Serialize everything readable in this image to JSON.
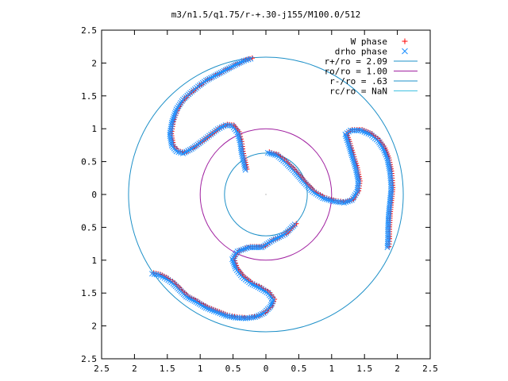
{
  "chart_data": {
    "type": "scatter",
    "title": "m3/n1.5/q1.75/r-+.30-j155/M100.0/512",
    "xlim": [
      -2.5,
      2.5
    ],
    "ylim": [
      -2.5,
      2.5
    ],
    "x_ticks": [
      -2.5,
      -2,
      -1.5,
      -1,
      -0.5,
      0,
      0.5,
      1,
      1.5,
      2,
      2.5
    ],
    "y_ticks": [
      -2.5,
      -2,
      -1.5,
      -1,
      -0.5,
      0,
      0.5,
      1,
      1.5,
      2,
      2.5
    ],
    "x_tick_labels": [
      "2.5",
      "2",
      "1.5",
      "1",
      "0.5",
      "0",
      "0.5",
      "1",
      "1.5",
      "2",
      "2.5"
    ],
    "y_tick_labels": [
      "2.5",
      "2",
      "1.5",
      "1",
      "0.5",
      "0",
      "0.5",
      "1",
      "1.5",
      "2",
      "2.5"
    ],
    "grid": false,
    "legend_position": "top-right",
    "series": [
      {
        "name": "W phase",
        "marker": "plus",
        "color": "#ff0000",
        "arms": [
          [
            [
              -0.22,
              2.07
            ],
            [
              -0.32,
              2.04
            ],
            [
              -0.45,
              1.98
            ],
            [
              -0.6,
              1.9
            ],
            [
              -0.75,
              1.82
            ],
            [
              -0.9,
              1.74
            ],
            [
              -1.02,
              1.65
            ],
            [
              -1.14,
              1.55
            ],
            [
              -1.25,
              1.45
            ],
            [
              -1.35,
              1.3
            ],
            [
              -1.42,
              1.1
            ],
            [
              -1.45,
              0.92
            ],
            [
              -1.42,
              0.75
            ],
            [
              -1.35,
              0.66
            ],
            [
              -1.25,
              0.63
            ],
            [
              -1.12,
              0.7
            ],
            [
              -0.98,
              0.8
            ],
            [
              -0.85,
              0.9
            ],
            [
              -0.72,
              1.0
            ],
            [
              -0.6,
              1.06
            ],
            [
              -0.5,
              1.05
            ],
            [
              -0.42,
              0.95
            ],
            [
              -0.38,
              0.8
            ],
            [
              -0.36,
              0.65
            ],
            [
              -0.3,
              0.38
            ]
          ],
          [
            [
              -1.72,
              -1.2
            ],
            [
              -1.62,
              -1.22
            ],
            [
              -1.5,
              -1.28
            ],
            [
              -1.4,
              -1.35
            ],
            [
              -1.3,
              -1.45
            ],
            [
              -1.2,
              -1.55
            ],
            [
              -1.05,
              -1.63
            ],
            [
              -0.9,
              -1.72
            ],
            [
              -0.75,
              -1.78
            ],
            [
              -0.6,
              -1.84
            ],
            [
              -0.45,
              -1.87
            ],
            [
              -0.3,
              -1.88
            ],
            [
              -0.15,
              -1.86
            ],
            [
              -0.02,
              -1.8
            ],
            [
              0.08,
              -1.7
            ],
            [
              0.12,
              -1.6
            ],
            [
              0.05,
              -1.5
            ],
            [
              -0.08,
              -1.42
            ],
            [
              -0.22,
              -1.35
            ],
            [
              -0.35,
              -1.25
            ],
            [
              -0.45,
              -1.12
            ],
            [
              -0.5,
              -0.98
            ],
            [
              -0.42,
              -0.86
            ],
            [
              -0.25,
              -0.8
            ],
            [
              -0.05,
              -0.8
            ],
            [
              0.1,
              -0.7
            ],
            [
              0.3,
              -0.6
            ],
            [
              0.45,
              -0.45
            ]
          ],
          [
            [
              0.04,
              0.64
            ],
            [
              0.18,
              0.6
            ],
            [
              0.3,
              0.5
            ],
            [
              0.45,
              0.35
            ],
            [
              0.58,
              0.2
            ],
            [
              0.72,
              0.05
            ],
            [
              0.88,
              -0.05
            ],
            [
              1.05,
              -0.1
            ],
            [
              1.2,
              -0.12
            ],
            [
              1.32,
              -0.08
            ],
            [
              1.4,
              0.05
            ],
            [
              1.42,
              0.2
            ],
            [
              1.38,
              0.4
            ],
            [
              1.32,
              0.6
            ],
            [
              1.26,
              0.8
            ],
            [
              1.22,
              0.92
            ],
            [
              1.3,
              0.98
            ],
            [
              1.45,
              0.98
            ],
            [
              1.6,
              0.92
            ],
            [
              1.72,
              0.82
            ],
            [
              1.8,
              0.7
            ],
            [
              1.86,
              0.55
            ],
            [
              1.9,
              0.35
            ],
            [
              1.92,
              0.1
            ],
            [
              1.9,
              -0.1
            ],
            [
              1.88,
              -0.3
            ],
            [
              1.87,
              -0.5
            ],
            [
              1.87,
              -0.68
            ],
            [
              1.86,
              -0.8
            ]
          ]
        ]
      },
      {
        "name": "drho phase",
        "marker": "cross",
        "color": "#1e90ff",
        "arms": [
          [
            [
              -0.22,
              2.07
            ],
            [
              -0.32,
              2.04
            ],
            [
              -0.45,
              1.98
            ],
            [
              -0.6,
              1.9
            ],
            [
              -0.75,
              1.82
            ],
            [
              -0.9,
              1.74
            ],
            [
              -1.02,
              1.65
            ],
            [
              -1.14,
              1.55
            ],
            [
              -1.25,
              1.45
            ],
            [
              -1.35,
              1.3
            ],
            [
              -1.42,
              1.1
            ],
            [
              -1.45,
              0.92
            ],
            [
              -1.42,
              0.75
            ],
            [
              -1.35,
              0.66
            ],
            [
              -1.25,
              0.63
            ],
            [
              -1.12,
              0.7
            ],
            [
              -0.98,
              0.8
            ],
            [
              -0.85,
              0.9
            ],
            [
              -0.72,
              1.0
            ],
            [
              -0.6,
              1.06
            ],
            [
              -0.5,
              1.05
            ],
            [
              -0.42,
              0.95
            ],
            [
              -0.38,
              0.8
            ],
            [
              -0.36,
              0.65
            ],
            [
              -0.3,
              0.38
            ]
          ],
          [
            [
              -1.72,
              -1.2
            ],
            [
              -1.62,
              -1.22
            ],
            [
              -1.5,
              -1.28
            ],
            [
              -1.4,
              -1.35
            ],
            [
              -1.3,
              -1.45
            ],
            [
              -1.2,
              -1.55
            ],
            [
              -1.05,
              -1.63
            ],
            [
              -0.9,
              -1.72
            ],
            [
              -0.75,
              -1.78
            ],
            [
              -0.6,
              -1.84
            ],
            [
              -0.45,
              -1.87
            ],
            [
              -0.3,
              -1.88
            ],
            [
              -0.15,
              -1.86
            ],
            [
              -0.02,
              -1.8
            ],
            [
              0.08,
              -1.7
            ],
            [
              0.12,
              -1.6
            ],
            [
              0.05,
              -1.5
            ],
            [
              -0.08,
              -1.42
            ],
            [
              -0.22,
              -1.35
            ],
            [
              -0.35,
              -1.25
            ],
            [
              -0.45,
              -1.12
            ],
            [
              -0.5,
              -0.98
            ],
            [
              -0.42,
              -0.86
            ],
            [
              -0.25,
              -0.8
            ],
            [
              -0.05,
              -0.8
            ],
            [
              0.1,
              -0.7
            ],
            [
              0.3,
              -0.6
            ],
            [
              0.45,
              -0.45
            ]
          ],
          [
            [
              0.04,
              0.64
            ],
            [
              0.18,
              0.6
            ],
            [
              0.3,
              0.5
            ],
            [
              0.45,
              0.35
            ],
            [
              0.58,
              0.2
            ],
            [
              0.72,
              0.05
            ],
            [
              0.88,
              -0.05
            ],
            [
              1.05,
              -0.1
            ],
            [
              1.2,
              -0.12
            ],
            [
              1.32,
              -0.08
            ],
            [
              1.4,
              0.05
            ],
            [
              1.42,
              0.2
            ],
            [
              1.38,
              0.4
            ],
            [
              1.32,
              0.6
            ],
            [
              1.26,
              0.8
            ],
            [
              1.22,
              0.92
            ],
            [
              1.3,
              0.98
            ],
            [
              1.45,
              0.98
            ],
            [
              1.6,
              0.92
            ],
            [
              1.72,
              0.82
            ],
            [
              1.8,
              0.7
            ],
            [
              1.86,
              0.55
            ],
            [
              1.9,
              0.35
            ],
            [
              1.92,
              0.1
            ],
            [
              1.9,
              -0.1
            ],
            [
              1.88,
              -0.3
            ],
            [
              1.87,
              -0.5
            ],
            [
              1.87,
              -0.68
            ],
            [
              1.86,
              -0.8
            ]
          ]
        ]
      }
    ],
    "circles": [
      {
        "name": "r+/ro = 2.09",
        "radius": 2.09,
        "color": "#1e90c8"
      },
      {
        "name": "ro/ro = 1.00",
        "radius": 1.0,
        "color": "#a020a0"
      },
      {
        "name": "r-/ro = .63",
        "radius": 0.63,
        "color": "#1e90c8"
      },
      {
        "name": "rc/ro = NaN",
        "radius": null,
        "color": "#40c0e0"
      }
    ]
  }
}
